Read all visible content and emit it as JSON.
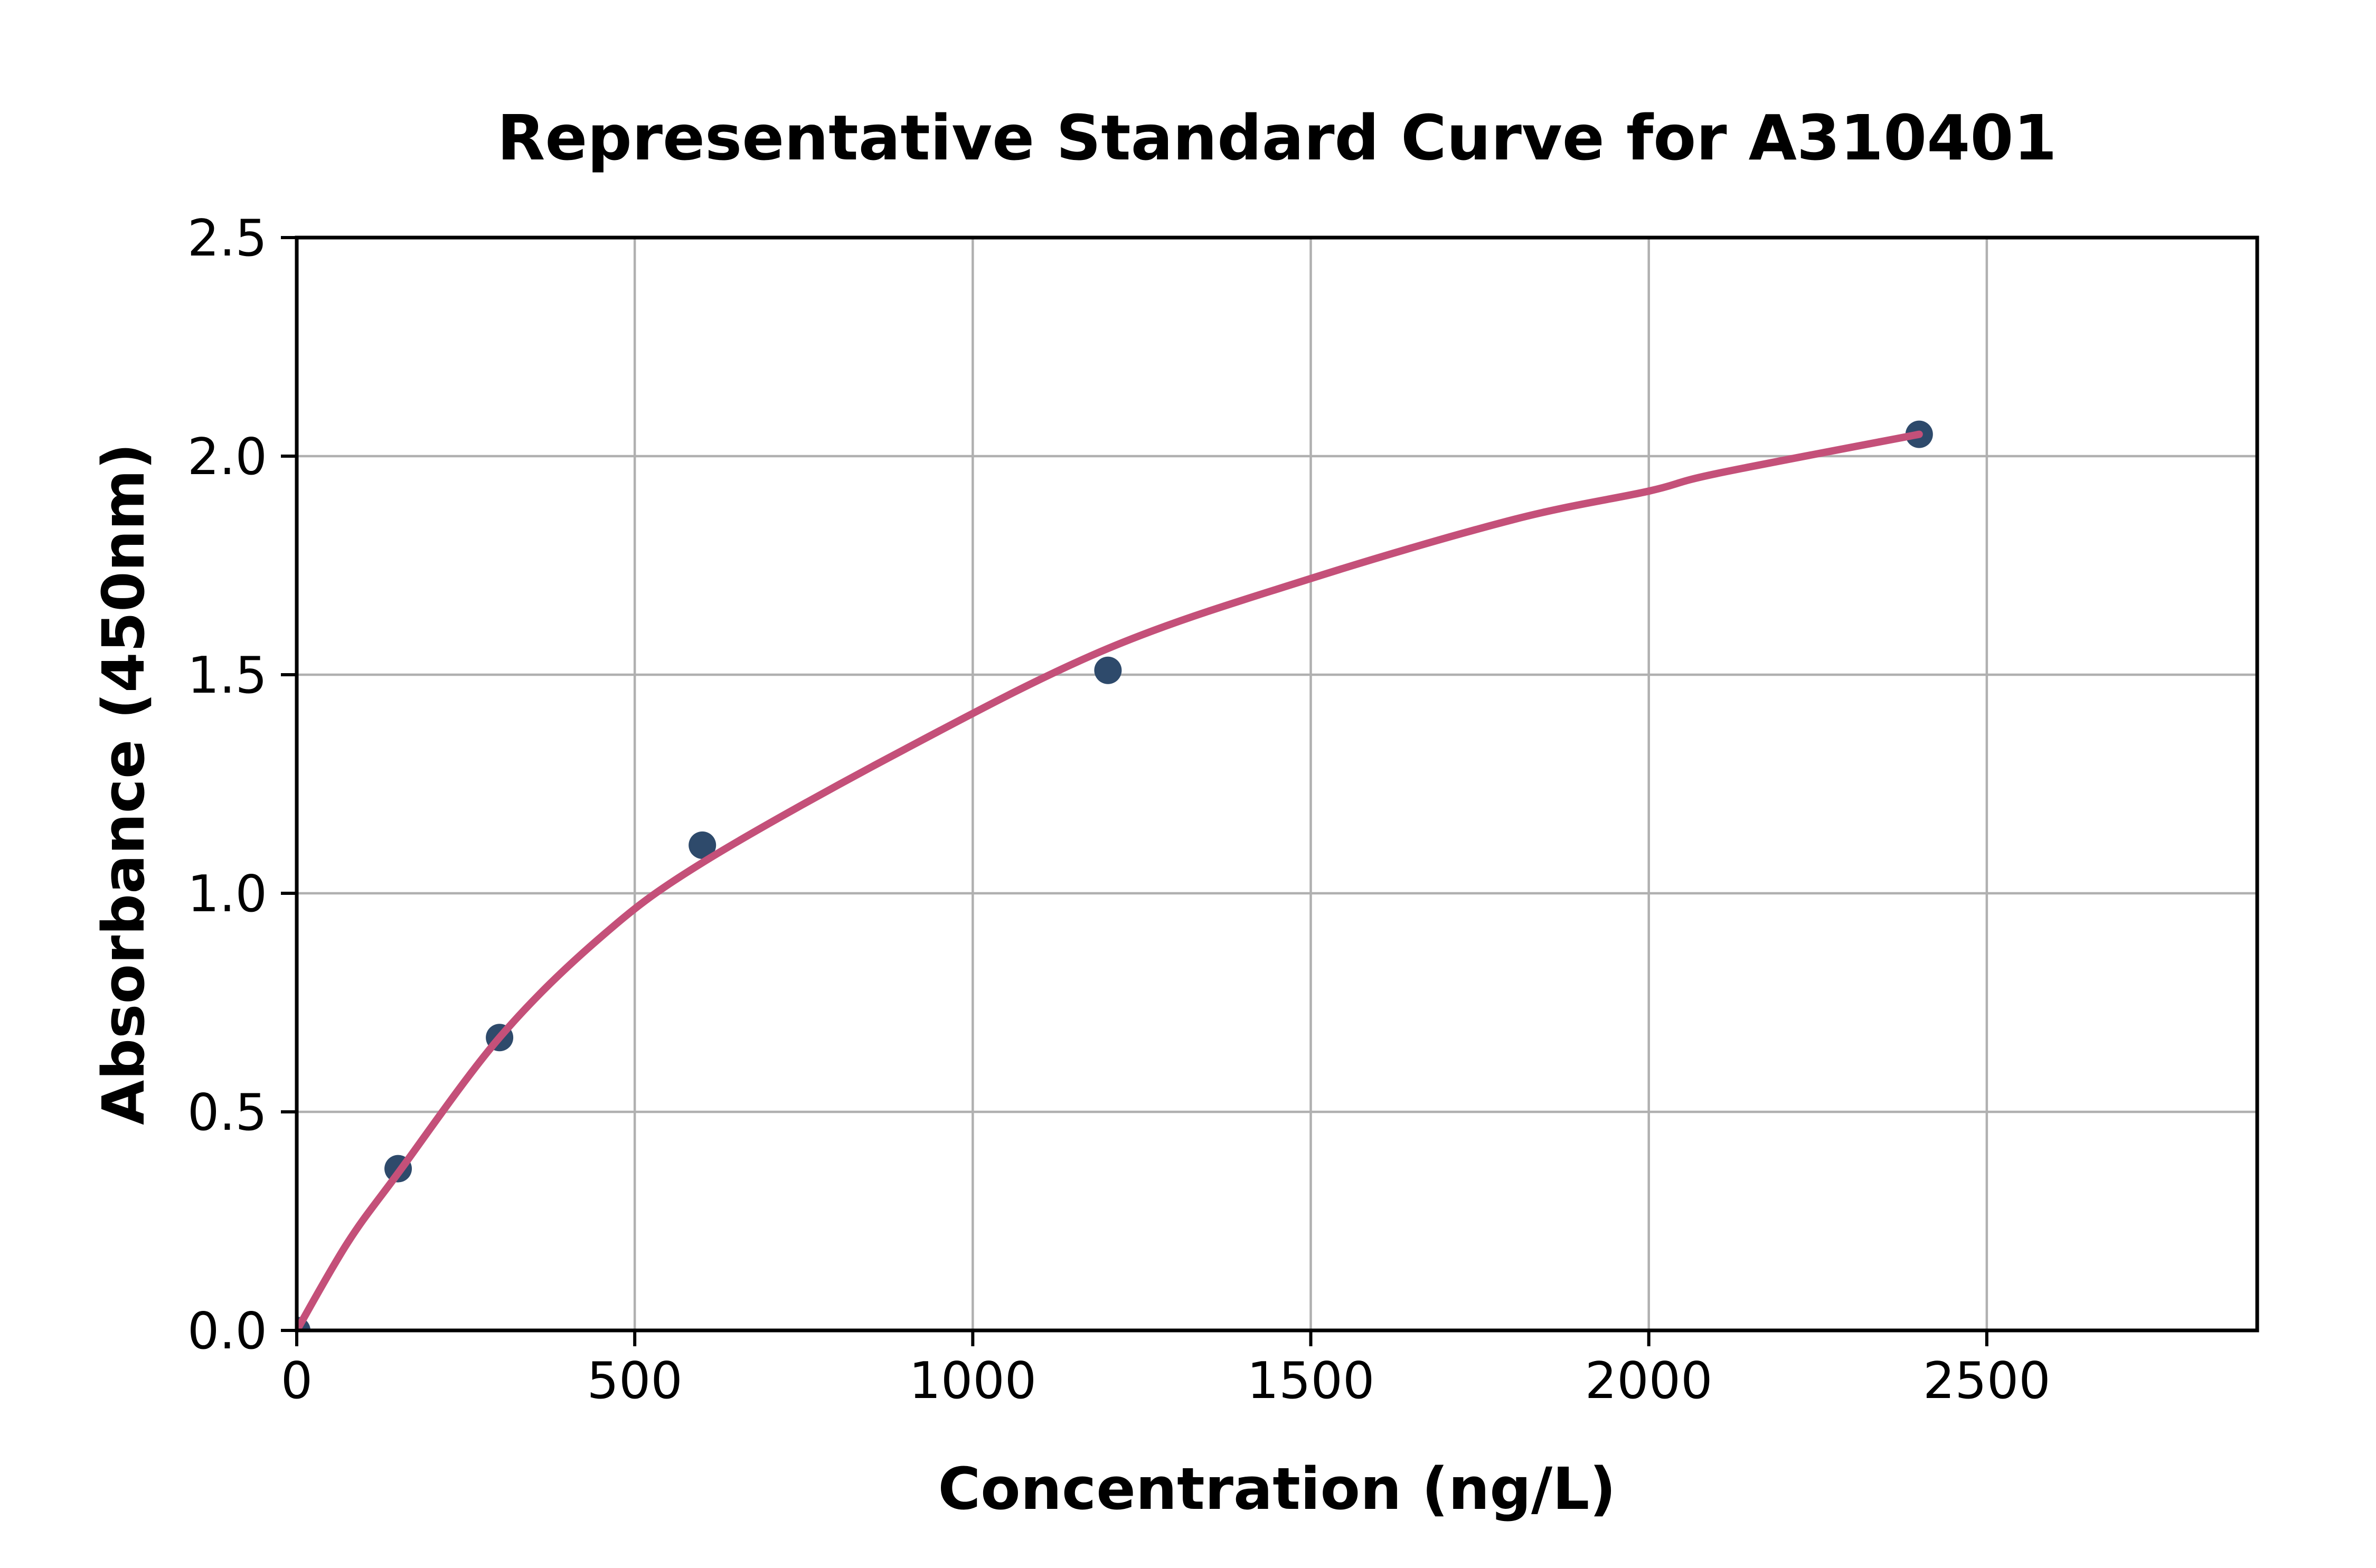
{
  "page": {
    "background": "#ffffff"
  },
  "chart_data": {
    "type": "scatter",
    "title": "Representative Standard Curve for A310401",
    "xlabel": "Concentration (ng/L)",
    "ylabel": "Absorbance (450nm)",
    "xlim": [
      0,
      2900
    ],
    "ylim": [
      0,
      2.5
    ],
    "xticks": [
      0,
      500,
      1000,
      1500,
      2000,
      2500
    ],
    "xtick_labels": [
      "0",
      "500",
      "1000",
      "1500",
      "2000",
      "2500"
    ],
    "yticks": [
      0.0,
      0.5,
      1.0,
      1.5,
      2.0,
      2.5
    ],
    "ytick_labels": [
      "0.0",
      "0.5",
      "1.0",
      "1.5",
      "2.0",
      "2.5"
    ],
    "grid": true,
    "legend_position": "none",
    "series": [
      {
        "name": "standard-points",
        "type": "scatter",
        "x": [
          0,
          150,
          300,
          600,
          1200,
          2400
        ],
        "y": [
          0.0,
          0.37,
          0.67,
          1.11,
          1.51,
          2.05
        ],
        "color": "#2e4a6b"
      },
      {
        "name": "fitted-curve",
        "type": "line",
        "x": [
          0,
          75,
          150,
          300,
          450,
          600,
          900,
          1200,
          1500,
          1800,
          2000,
          2100,
          2400
        ],
        "y": [
          0.0,
          0.2,
          0.36,
          0.67,
          0.9,
          1.07,
          1.33,
          1.56,
          1.72,
          1.855,
          1.92,
          1.96,
          2.05
        ],
        "color": "#c45079"
      }
    ],
    "colors": {
      "grid": "#b0b0b0",
      "axis": "#000000",
      "text": "#000000",
      "background": "#ffffff"
    }
  }
}
